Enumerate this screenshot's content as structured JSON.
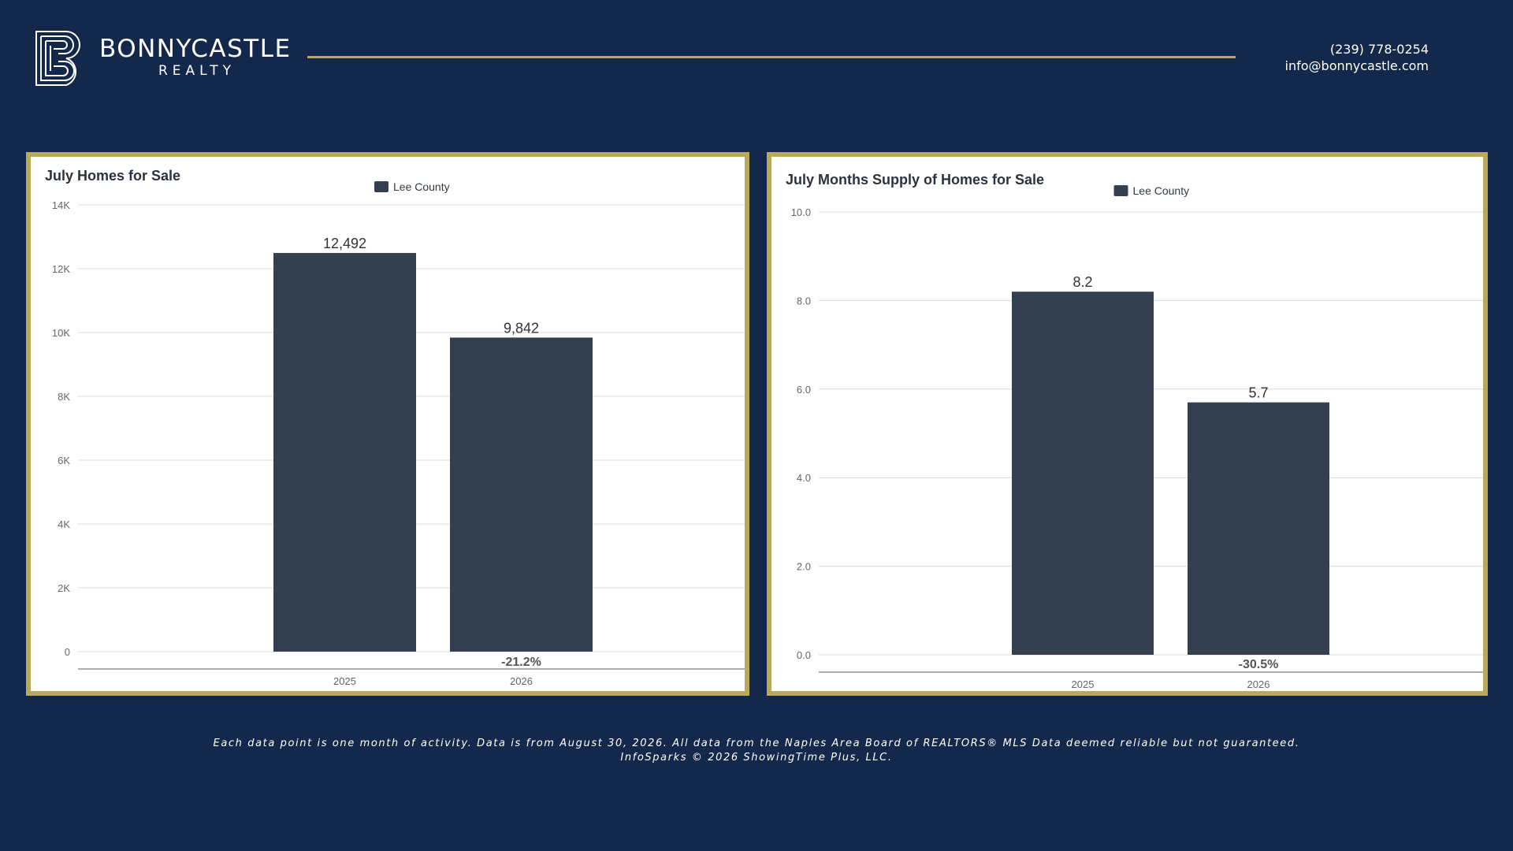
{
  "brand": {
    "name": "BONNYCASTLE",
    "sub": "REALTY",
    "phone": "(239) 778-0254",
    "email": "info@bonnycastle.com",
    "accent_color": "#b9a95a",
    "background_color": "#13284a"
  },
  "chart_data": [
    {
      "type": "bar",
      "title": "July Homes for Sale",
      "legend": [
        "Lee County"
      ],
      "legend_position": "top-center",
      "categories": [
        "2025",
        "2026"
      ],
      "series": [
        {
          "name": "Lee County",
          "values": [
            12492,
            9842
          ]
        }
      ],
      "data_labels": [
        "12,492",
        "9,842"
      ],
      "change_label": "-21.2%",
      "ylim": [
        0,
        14000
      ],
      "yticks": [
        0,
        2000,
        4000,
        6000,
        8000,
        10000,
        12000,
        14000
      ],
      "ytick_labels": [
        "0",
        "2K",
        "4K",
        "6K",
        "8K",
        "10K",
        "12K",
        "14K"
      ],
      "grid": true,
      "bar_color": "#344050"
    },
    {
      "type": "bar",
      "title": "July Months Supply of Homes for Sale",
      "legend": [
        "Lee County"
      ],
      "legend_position": "top-center",
      "categories": [
        "2025",
        "2026"
      ],
      "series": [
        {
          "name": "Lee County",
          "values": [
            8.2,
            5.7
          ]
        }
      ],
      "data_labels": [
        "8.2",
        "5.7"
      ],
      "change_label": "-30.5%",
      "ylim": [
        0,
        10
      ],
      "yticks": [
        0,
        2,
        4,
        6,
        8,
        10
      ],
      "ytick_labels": [
        "0.0",
        "2.0",
        "4.0",
        "6.0",
        "8.0",
        "10.0"
      ],
      "grid": true,
      "bar_color": "#344050"
    }
  ],
  "footer": {
    "line1": "Each data point is one month of activity. Data is from August 30, 2026. All data from the Naples Area Board of REALTORS® MLS  Data deemed reliable but not guaranteed.",
    "line2": "InfoSparks © 2026 ShowingTime Plus, LLC."
  }
}
